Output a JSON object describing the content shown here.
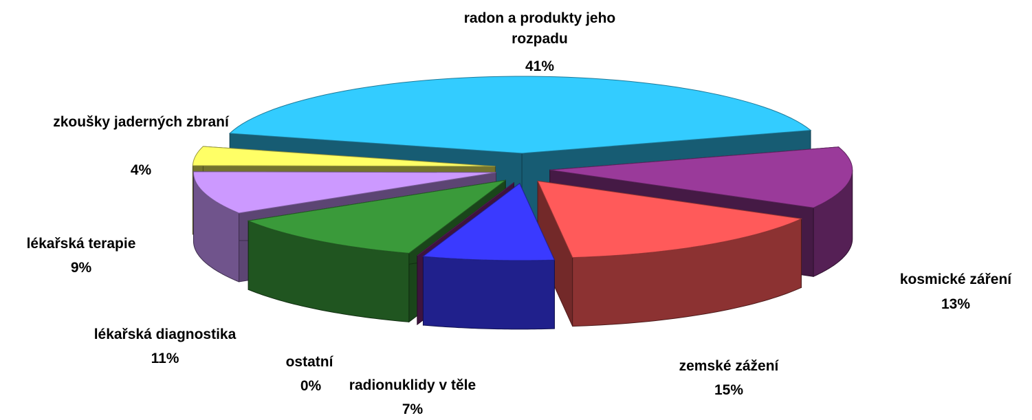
{
  "chart_data": {
    "type": "pie3d",
    "categories": [
      "radon a produkty jeho rozpadu",
      "kosmické záření",
      "zemské zážení",
      "radionuklidy v těle",
      "ostatní",
      "lékařská diagnostika",
      "lékařská terapie",
      "zkoušky jaderných zbraní"
    ],
    "values": [
      41,
      13,
      15,
      7,
      0,
      11,
      9,
      4
    ],
    "value_labels": [
      "41%",
      "13%",
      "15%",
      "7%",
      "0%",
      "11%",
      "9%",
      "4%"
    ],
    "colors": [
      "#33ccff",
      "#9a3a9a",
      "#ff5a5a",
      "#3a3aff",
      "#8a2a8a",
      "#3a9a3a",
      "#cc99ff",
      "#ffff66"
    ]
  }
}
